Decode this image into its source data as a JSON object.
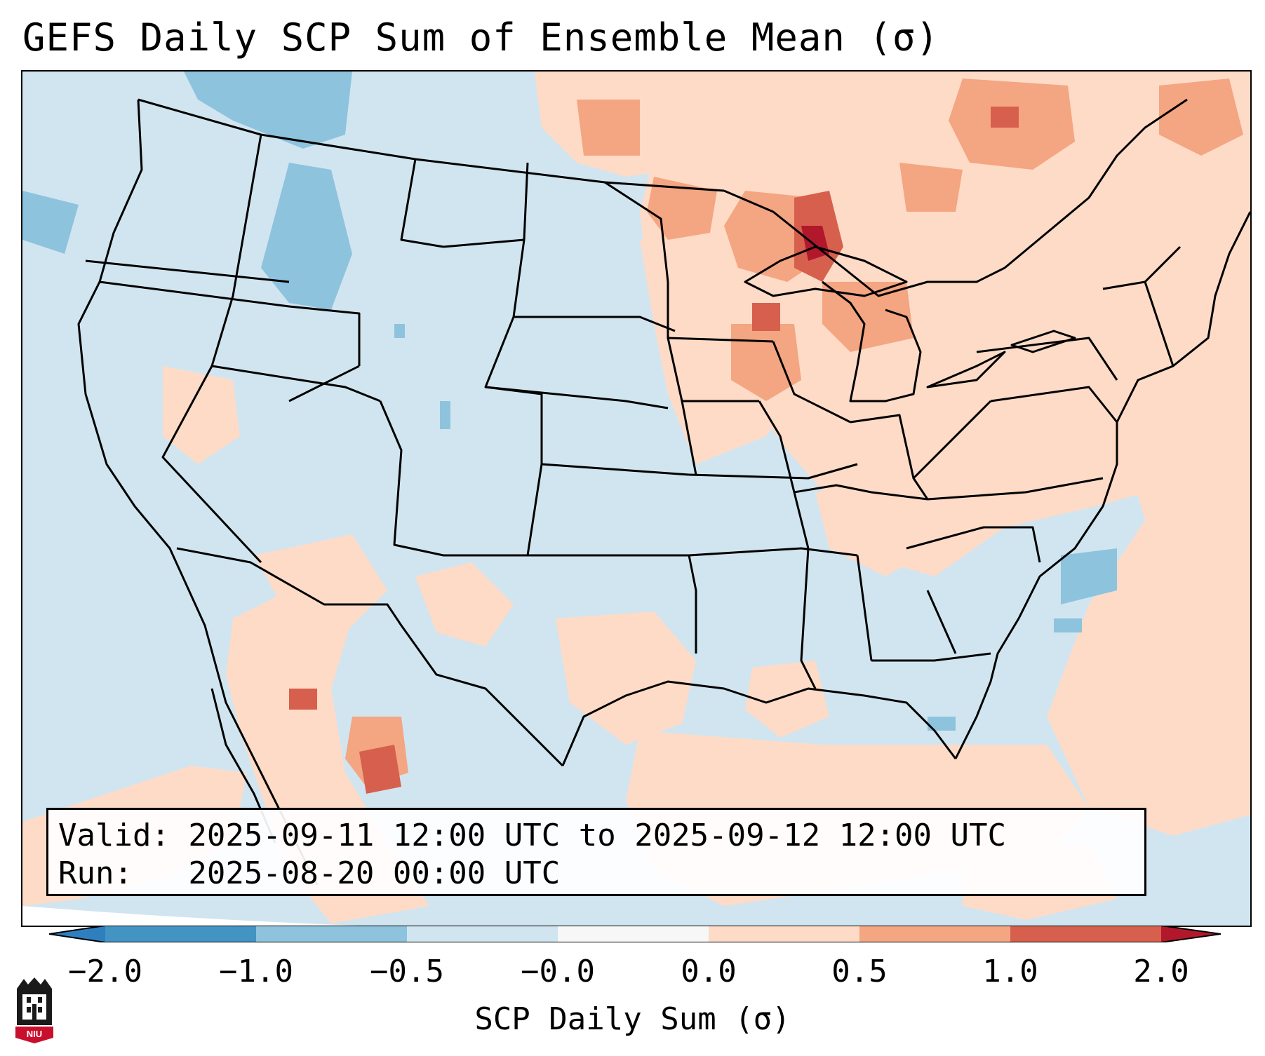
{
  "title": "GEFS Daily SCP Sum of Ensemble Mean (σ)",
  "valid_text": "Valid: 2025-09-11 12:00 UTC to 2025-09-12 12:00 UTC",
  "run_text": "Run:   2025-08-20 00:00 UTC",
  "colorbar": {
    "label": "SCP Daily Sum (σ)",
    "ticks": [
      "−2.0",
      "−1.0",
      "−0.5",
      "−0.0",
      "0.0",
      "0.5",
      "1.0",
      "2.0"
    ],
    "colors": [
      "#2f7fbf",
      "#8ec3de",
      "#d1e5f0",
      "#f7f7f7",
      "#fddbc7",
      "#f4a582",
      "#d6604d",
      "#b2182b"
    ]
  },
  "logo_text": "NIU",
  "map_colors": {
    "background": "#d1e5f0",
    "light_red": "#fddbc7",
    "medium_red": "#f4a582",
    "strong_red": "#d6604d",
    "dark_red": "#b2182b",
    "light_blue": "#8ec3de",
    "border": "#000000"
  }
}
